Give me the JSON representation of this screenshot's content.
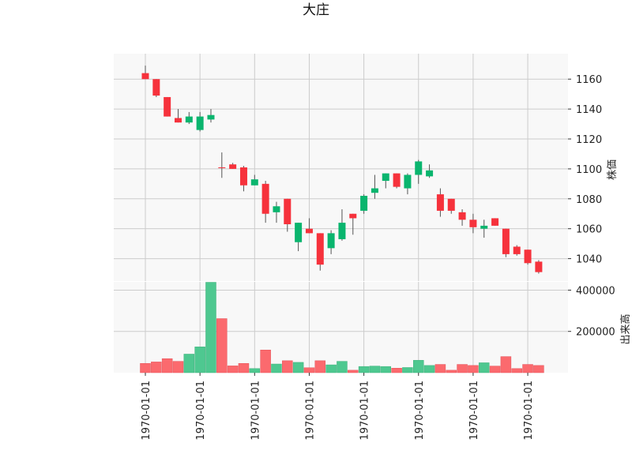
{
  "chart_data": {
    "type": "candlestick",
    "title": "大庄",
    "x_tick_labels": [
      "1970-01-01",
      "1970-01-01",
      "1970-01-01",
      "1970-01-01",
      "1970-01-01",
      "1970-01-01",
      "1970-01-01",
      "1970-01-01"
    ],
    "price_axis": {
      "label": "株価",
      "ylim": [
        1025,
        1177
      ],
      "ticks": [
        1040,
        1060,
        1080,
        1100,
        1120,
        1140,
        1160
      ]
    },
    "volume_axis": {
      "label": "出来高",
      "ylim": [
        0,
        440000
      ],
      "ticks": [
        200000,
        400000
      ]
    },
    "grid": true,
    "colors": {
      "up": "#f6323c",
      "down": "#0ab56e",
      "up_volume": "#fb6a6e",
      "down_volume": "#4ec890",
      "panel_bg": "#f8f8f8",
      "grid": "#cccccc"
    },
    "candles": [
      {
        "open": 1160,
        "high": 1169,
        "low": 1160,
        "close": 1164,
        "volume": 45000
      },
      {
        "open": 1149,
        "high": 1160,
        "low": 1148,
        "close": 1160,
        "volume": 52000
      },
      {
        "open": 1135,
        "high": 1148,
        "low": 1135,
        "close": 1148,
        "volume": 68000
      },
      {
        "open": 1131,
        "high": 1140,
        "low": 1131,
        "close": 1134,
        "volume": 55000
      },
      {
        "open": 1135,
        "high": 1138,
        "low": 1130,
        "close": 1131,
        "volume": 90000
      },
      {
        "open": 1135,
        "high": 1138,
        "low": 1125,
        "close": 1126,
        "volume": 125000
      },
      {
        "open": 1136,
        "high": 1140,
        "low": 1131,
        "close": 1133,
        "volume": 438000
      },
      {
        "open": 1101,
        "high": 1111,
        "low": 1094,
        "close": 1101,
        "volume": 262000
      },
      {
        "open": 1100,
        "high": 1104,
        "low": 1100,
        "close": 1103,
        "volume": 33000
      },
      {
        "open": 1089,
        "high": 1102,
        "low": 1085,
        "close": 1101,
        "volume": 45000
      },
      {
        "open": 1093,
        "high": 1096,
        "low": 1089,
        "close": 1089,
        "volume": 20000
      },
      {
        "open": 1070,
        "high": 1092,
        "low": 1064,
        "close": 1090,
        "volume": 110000
      },
      {
        "open": 1075,
        "high": 1078,
        "low": 1064,
        "close": 1071,
        "volume": 42000
      },
      {
        "open": 1063,
        "high": 1080,
        "low": 1058,
        "close": 1080,
        "volume": 58000
      },
      {
        "open": 1064,
        "high": 1064,
        "low": 1045,
        "close": 1051,
        "volume": 50000
      },
      {
        "open": 1057,
        "high": 1067,
        "low": 1057,
        "close": 1060,
        "volume": 24000
      },
      {
        "open": 1036,
        "high": 1057,
        "low": 1032,
        "close": 1057,
        "volume": 58000
      },
      {
        "open": 1057,
        "high": 1059,
        "low": 1043,
        "close": 1047,
        "volume": 38000
      },
      {
        "open": 1064,
        "high": 1073,
        "low": 1052,
        "close": 1053,
        "volume": 55000
      },
      {
        "open": 1067,
        "high": 1070,
        "low": 1056,
        "close": 1070,
        "volume": 12000
      },
      {
        "open": 1082,
        "high": 1083,
        "low": 1070,
        "close": 1072,
        "volume": 30000
      },
      {
        "open": 1087,
        "high": 1096,
        "low": 1080,
        "close": 1084,
        "volume": 32000
      },
      {
        "open": 1097,
        "high": 1097,
        "low": 1087,
        "close": 1092,
        "volume": 30000
      },
      {
        "open": 1088,
        "high": 1097,
        "low": 1087,
        "close": 1097,
        "volume": 22000
      },
      {
        "open": 1096,
        "high": 1097,
        "low": 1083,
        "close": 1087,
        "volume": 25000
      },
      {
        "open": 1105,
        "high": 1106,
        "low": 1090,
        "close": 1096,
        "volume": 60000
      },
      {
        "open": 1099,
        "high": 1103,
        "low": 1094,
        "close": 1095,
        "volume": 35000
      },
      {
        "open": 1072,
        "high": 1087,
        "low": 1068,
        "close": 1083,
        "volume": 40000
      },
      {
        "open": 1072,
        "high": 1080,
        "low": 1070,
        "close": 1080,
        "volume": 12000
      },
      {
        "open": 1066,
        "high": 1073,
        "low": 1062,
        "close": 1071,
        "volume": 40000
      },
      {
        "open": 1061,
        "high": 1070,
        "low": 1057,
        "close": 1066,
        "volume": 35000
      },
      {
        "open": 1062,
        "high": 1066,
        "low": 1054,
        "close": 1060,
        "volume": 48000
      },
      {
        "open": 1062,
        "high": 1067,
        "low": 1062,
        "close": 1067,
        "volume": 32000
      },
      {
        "open": 1043,
        "high": 1060,
        "low": 1041,
        "close": 1060,
        "volume": 78000
      },
      {
        "open": 1043,
        "high": 1049,
        "low": 1042,
        "close": 1048,
        "volume": 20000
      },
      {
        "open": 1037,
        "high": 1046,
        "low": 1036,
        "close": 1046,
        "volume": 40000
      },
      {
        "open": 1031,
        "high": 1039,
        "low": 1030,
        "close": 1038,
        "volume": 35000
      }
    ]
  }
}
